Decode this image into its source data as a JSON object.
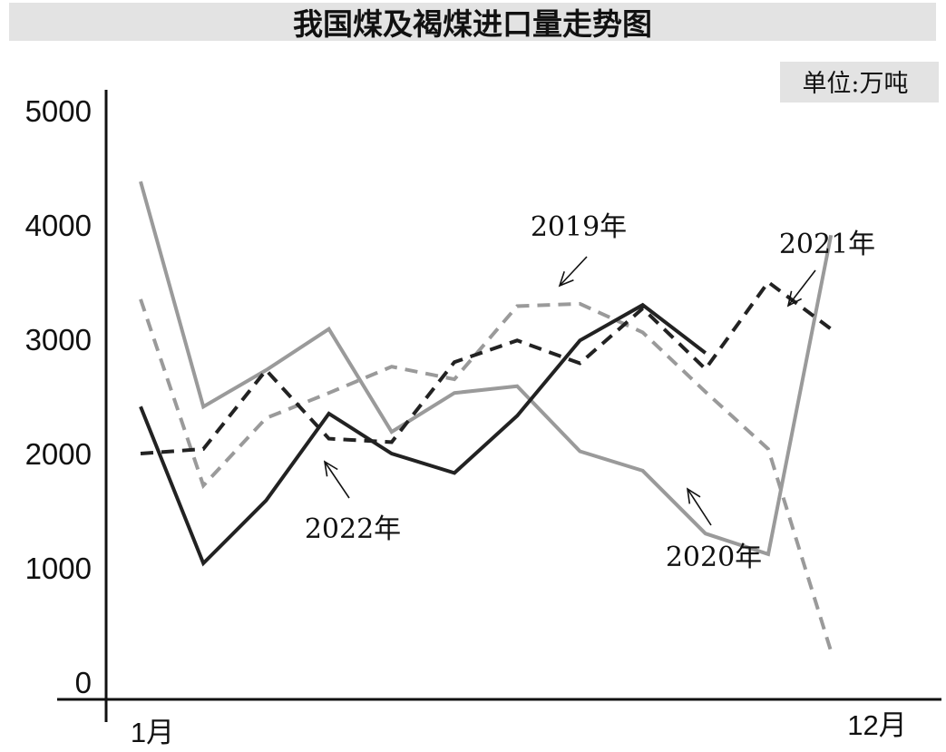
{
  "chart_data": {
    "type": "line",
    "title": "我国煤及褐煤进口量走势图",
    "unit_label": "单位:万吨",
    "ylim": [
      0,
      5000
    ],
    "y_ticks": [
      "0",
      "1000",
      "2000",
      "3000",
      "4000",
      "5000"
    ],
    "x": [
      1,
      2,
      3,
      4,
      5,
      6,
      7,
      8,
      9,
      10,
      11,
      12
    ],
    "x_tick_labels": [
      "1月",
      "12月"
    ],
    "series": [
      {
        "name": "2019年",
        "values": [
          3350,
          1720,
          2310,
          2530,
          2760,
          2650,
          3290,
          3310,
          3060,
          2540,
          2040,
          270
        ],
        "color": "#9a9a9a",
        "dashed": true
      },
      {
        "name": "2020年",
        "values": [
          4380,
          2410,
          2730,
          3090,
          2190,
          2530,
          2590,
          2020,
          1850,
          1300,
          1120,
          3910
        ],
        "color": "#9a9a9a",
        "dashed": false
      },
      {
        "name": "2021年",
        "values": [
          2000,
          2040,
          2730,
          2130,
          2100,
          2800,
          2990,
          2790,
          3270,
          2740,
          3500,
          3090
        ],
        "color": "#222222",
        "dashed": true
      },
      {
        "name": "2022年",
        "values": [
          2410,
          1040,
          1590,
          2350,
          2000,
          1830,
          2330,
          2990,
          3300,
          2880,
          null,
          null
        ],
        "color": "#222222",
        "dashed": false
      }
    ],
    "annotations": [
      {
        "text": "2019年",
        "series": "2019年"
      },
      {
        "text": "2021年",
        "series": "2021年"
      },
      {
        "text": "2022年",
        "series": "2022年"
      },
      {
        "text": "2020年",
        "series": "2020年"
      }
    ],
    "grid": false,
    "legend": "none"
  }
}
